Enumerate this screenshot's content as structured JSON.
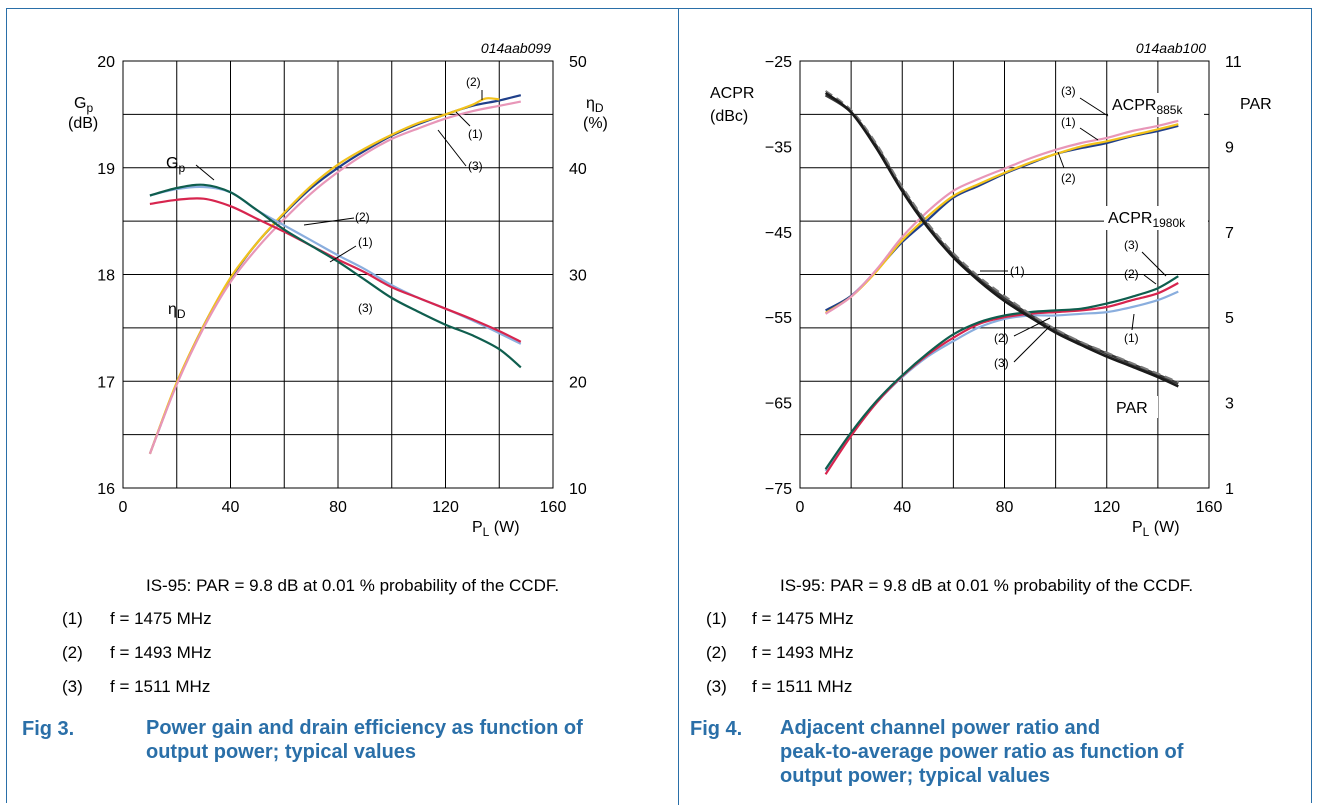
{
  "chart_data": [
    {
      "type": "line",
      "code": "014aab099",
      "xlabel_main": "P",
      "xlabel_sub": "L",
      "xlabel_unit": " (W)",
      "xlim": [
        0,
        160
      ],
      "x_ticks": [
        "0",
        "40",
        "80",
        "120",
        "160"
      ],
      "y_left_label_main": "G",
      "y_left_label_sub": "p",
      "y_left_label_unit": "(dB)",
      "ylim_left": [
        16,
        20
      ],
      "y_left_ticks": [
        "16",
        "17",
        "18",
        "19",
        "20"
      ],
      "y_right_label_main": "η",
      "y_right_label_sub": "D",
      "y_right_label_unit": "(%)",
      "ylim_right": [
        10,
        50
      ],
      "y_right_ticks": [
        "10",
        "20",
        "30",
        "40",
        "50"
      ],
      "grid": true,
      "curve_labels": [
        {
          "main": "G",
          "sub": "p"
        },
        {
          "main": "η",
          "sub": "D"
        }
      ],
      "callouts": [
        "(2)",
        "(1)",
        "(3)",
        "(2)",
        "(1)",
        "(3)"
      ],
      "series": [
        {
          "name": "(1)",
          "color": "#1f3f8a",
          "axis": "left",
          "x": [
            10,
            20,
            30,
            40,
            50,
            60,
            70,
            80,
            90,
            100,
            110,
            120,
            130,
            140,
            148
          ],
          "y": [
            16.32,
            16.98,
            17.52,
            17.96,
            18.3,
            18.57,
            18.81,
            19.0,
            19.16,
            19.3,
            19.41,
            19.5,
            19.58,
            19.63,
            19.68
          ]
        },
        {
          "name": "(2)",
          "color": "#f2c21b",
          "axis": "left",
          "x": [
            10,
            20,
            30,
            40,
            50,
            60,
            70,
            80,
            90,
            100,
            110,
            120,
            130,
            135,
            140
          ],
          "y": [
            16.32,
            16.99,
            17.52,
            17.97,
            18.3,
            18.58,
            18.83,
            19.03,
            19.18,
            19.31,
            19.42,
            19.5,
            19.59,
            19.65,
            19.64
          ]
        },
        {
          "name": "(3)",
          "color": "#e896b8",
          "axis": "left",
          "x": [
            10,
            20,
            30,
            40,
            50,
            60,
            70,
            80,
            90,
            100,
            110,
            120,
            130,
            140,
            148
          ],
          "y": [
            16.32,
            16.97,
            17.5,
            17.93,
            18.25,
            18.52,
            18.76,
            18.96,
            19.13,
            19.27,
            19.37,
            19.46,
            19.53,
            19.58,
            19.62
          ]
        },
        {
          "name": "(1)",
          "color": "#8aaede",
          "axis": "left",
          "x": [
            10,
            20,
            30,
            40,
            50,
            60,
            70,
            80,
            90,
            100,
            110,
            120,
            130,
            140,
            148
          ],
          "y": [
            18.74,
            18.8,
            18.82,
            18.77,
            18.6,
            18.46,
            18.32,
            18.18,
            18.05,
            17.9,
            17.78,
            17.68,
            17.57,
            17.45,
            17.35
          ]
        },
        {
          "name": "(2)",
          "color": "#d7254e",
          "axis": "left",
          "x": [
            10,
            20,
            30,
            40,
            50,
            60,
            70,
            80,
            90,
            100,
            110,
            120,
            130,
            140,
            148
          ],
          "y": [
            18.66,
            18.7,
            18.71,
            18.64,
            18.52,
            18.4,
            18.27,
            18.14,
            18.02,
            17.88,
            17.78,
            17.68,
            17.58,
            17.47,
            17.37
          ]
        },
        {
          "name": "(3)",
          "color": "#0f5e4e",
          "axis": "left",
          "x": [
            10,
            20,
            30,
            40,
            50,
            60,
            70,
            80,
            90,
            100,
            110,
            120,
            130,
            140,
            148
          ],
          "y": [
            18.74,
            18.81,
            18.84,
            18.77,
            18.6,
            18.42,
            18.27,
            18.12,
            17.95,
            17.78,
            17.65,
            17.53,
            17.43,
            17.3,
            17.13
          ]
        }
      ]
    },
    {
      "type": "line",
      "code": "014aab100",
      "xlabel_main": "P",
      "xlabel_sub": "L",
      "xlabel_unit": " (W)",
      "xlim": [
        0,
        160
      ],
      "x_ticks": [
        "0",
        "40",
        "80",
        "120",
        "160"
      ],
      "y_left_label_line1": "ACPR",
      "y_left_label_line2": "(dBc)",
      "ylim_left": [
        -75,
        -25
      ],
      "y_left_ticks": [
        "−75",
        "−65",
        "−55",
        "−45",
        "−35",
        "−25"
      ],
      "y_right_label": "PAR",
      "ylim_right": [
        1,
        11
      ],
      "y_right_ticks": [
        "1",
        "3",
        "5",
        "7",
        "9",
        "11"
      ],
      "grid": true,
      "curve_labels": [
        {
          "main": "ACPR",
          "sub": "885k"
        },
        {
          "main": "ACPR",
          "sub": "1980k"
        },
        {
          "main": "PAR",
          "sub": ""
        }
      ],
      "callouts": [
        "(3)",
        "(1)",
        "(2)",
        "(3)",
        "(2)",
        "(1)",
        "(1)",
        "(2)",
        "(3)"
      ],
      "series": [
        {
          "name": "(1)",
          "color": "#1f3f8a",
          "axis": "left",
          "x": [
            10,
            20,
            30,
            40,
            50,
            60,
            70,
            80,
            90,
            100,
            110,
            120,
            130,
            140,
            148
          ],
          "y": [
            -54.2,
            -52.5,
            -49.5,
            -46.2,
            -43.6,
            -41.0,
            -39.6,
            -38.2,
            -37.0,
            -35.9,
            -35.2,
            -34.6,
            -33.8,
            -33.2,
            -32.6
          ]
        },
        {
          "name": "(2)",
          "color": "#f2c21b",
          "axis": "left",
          "x": [
            10,
            20,
            30,
            40,
            50,
            60,
            70,
            80,
            90,
            100,
            110,
            120,
            130,
            140,
            148
          ],
          "y": [
            -54.5,
            -52.6,
            -49.6,
            -46.0,
            -43.2,
            -40.8,
            -39.4,
            -38.1,
            -36.9,
            -35.9,
            -35.0,
            -34.4,
            -33.7,
            -33.0,
            -32.4
          ]
        },
        {
          "name": "(3)",
          "color": "#e896b8",
          "axis": "left",
          "x": [
            10,
            20,
            30,
            40,
            50,
            60,
            70,
            80,
            90,
            100,
            110,
            120,
            130,
            140,
            148
          ],
          "y": [
            -54.6,
            -52.6,
            -49.4,
            -45.6,
            -42.6,
            -40.2,
            -38.8,
            -37.6,
            -36.4,
            -35.4,
            -34.6,
            -34.0,
            -33.2,
            -32.6,
            -32.0
          ]
        },
        {
          "name": "(1)",
          "color": "#8aaede",
          "axis": "left",
          "x": [
            10,
            20,
            30,
            40,
            50,
            60,
            70,
            80,
            90,
            100,
            110,
            120,
            130,
            140,
            148
          ],
          "y": [
            -73.0,
            -68.8,
            -65.0,
            -62.0,
            -59.6,
            -57.8,
            -56.2,
            -55.2,
            -54.8,
            -54.8,
            -54.6,
            -54.4,
            -53.8,
            -53.0,
            -52.0
          ]
        },
        {
          "name": "(2)",
          "color": "#d7254e",
          "axis": "left",
          "x": [
            10,
            20,
            30,
            40,
            50,
            60,
            70,
            80,
            90,
            100,
            110,
            120,
            130,
            140,
            148
          ],
          "y": [
            -73.4,
            -68.9,
            -65.0,
            -61.9,
            -59.4,
            -57.4,
            -55.8,
            -55.0,
            -54.6,
            -54.4,
            -54.2,
            -53.8,
            -53.0,
            -52.2,
            -51.0
          ]
        },
        {
          "name": "(3)",
          "color": "#0f5e4e",
          "axis": "left",
          "x": [
            10,
            20,
            30,
            40,
            50,
            60,
            70,
            80,
            90,
            100,
            110,
            120,
            130,
            140,
            148
          ],
          "y": [
            -72.8,
            -68.5,
            -64.8,
            -61.8,
            -59.2,
            -57.0,
            -55.6,
            -54.8,
            -54.4,
            -54.2,
            -54.0,
            -53.4,
            -52.6,
            -51.6,
            -50.2
          ]
        },
        {
          "name": "(1)",
          "color": "#3a3a3a",
          "axis": "right",
          "x": [
            10,
            20,
            30,
            40,
            50,
            60,
            70,
            80,
            90,
            100,
            110,
            120,
            130,
            140,
            148
          ],
          "y": [
            10.2,
            9.8,
            9.0,
            8.0,
            7.15,
            6.45,
            5.9,
            5.45,
            5.05,
            4.7,
            4.4,
            4.15,
            3.9,
            3.65,
            3.45
          ]
        },
        {
          "name": "(2)",
          "color": "#7a7a7a",
          "axis": "right",
          "x": [
            10,
            20,
            30,
            40,
            50,
            60,
            70,
            80,
            90,
            100,
            110,
            120,
            130,
            140,
            148
          ],
          "y": [
            10.3,
            9.85,
            9.05,
            8.05,
            7.2,
            6.5,
            5.95,
            5.5,
            5.08,
            4.72,
            4.42,
            4.17,
            3.92,
            3.68,
            3.48
          ]
        },
        {
          "name": "(3)",
          "color": "#1a1a1a",
          "axis": "right",
          "x": [
            10,
            20,
            30,
            40,
            50,
            60,
            70,
            80,
            90,
            100,
            110,
            120,
            130,
            140,
            148
          ],
          "y": [
            10.25,
            9.8,
            8.95,
            7.95,
            7.1,
            6.4,
            5.85,
            5.38,
            5.0,
            4.64,
            4.35,
            4.08,
            3.84,
            3.6,
            3.38
          ]
        }
      ]
    }
  ],
  "left_panel": {
    "note": "IS-95: PAR = 9.8 dB at 0.01 % probability of the CCDF.",
    "legend": [
      {
        "num": "(1)",
        "text": "f = 1475 MHz"
      },
      {
        "num": "(2)",
        "text": "f = 1493 MHz"
      },
      {
        "num": "(3)",
        "text": "f = 1511 MHz"
      }
    ],
    "fig_label": "Fig 3.",
    "fig_title_line1": "Power gain and drain efficiency as function of",
    "fig_title_line2": "output power; typical values"
  },
  "right_panel": {
    "note": "IS-95: PAR = 9.8 dB at 0.01 % probability of the CCDF.",
    "legend": [
      {
        "num": "(1)",
        "text": "f = 1475 MHz"
      },
      {
        "num": "(2)",
        "text": "f = 1493 MHz"
      },
      {
        "num": "(3)",
        "text": "f = 1511 MHz"
      }
    ],
    "fig_label": "Fig 4.",
    "fig_title_line1": "Adjacent channel power ratio and",
    "fig_title_line2": "peak-to-average power ratio as function of",
    "fig_title_line3": "output power; typical values"
  }
}
